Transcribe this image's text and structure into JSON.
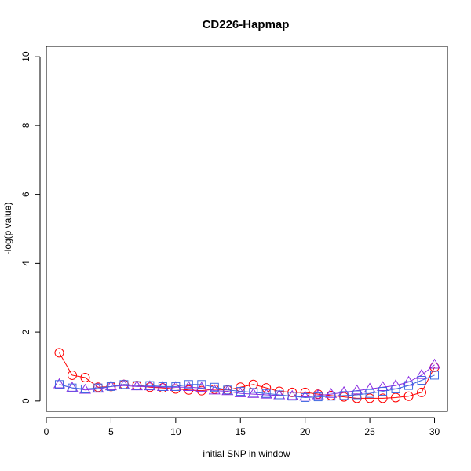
{
  "chart_data": {
    "type": "line",
    "title": "CD226-Hapmap",
    "xlabel": "initial SNP in window",
    "ylabel": "-log(p value)",
    "xlim": [
      0,
      31
    ],
    "ylim": [
      -0.3,
      10.3
    ],
    "xticks": [
      0,
      5,
      10,
      15,
      20,
      25,
      30
    ],
    "yticks": [
      0,
      2,
      4,
      6,
      8,
      10
    ],
    "grid": false,
    "x": [
      1,
      2,
      3,
      4,
      5,
      6,
      7,
      8,
      9,
      10,
      11,
      12,
      13,
      14,
      15,
      16,
      17,
      18,
      19,
      20,
      21,
      22,
      23,
      24,
      25,
      26,
      27,
      28,
      29,
      30
    ],
    "series": [
      {
        "marker": "circle",
        "color": "#ff0000",
        "values": [
          1.4,
          0.75,
          0.68,
          0.4,
          0.42,
          0.48,
          0.45,
          0.4,
          0.38,
          0.35,
          0.32,
          0.3,
          0.34,
          0.32,
          0.4,
          0.48,
          0.38,
          0.28,
          0.25,
          0.25,
          0.2,
          0.16,
          0.12,
          0.08,
          0.08,
          0.08,
          0.1,
          0.14,
          0.25,
          0.98
        ]
      },
      {
        "marker": "triangle",
        "color": "#8a2be2",
        "values": [
          0.48,
          0.38,
          0.32,
          0.35,
          0.42,
          0.45,
          0.42,
          0.42,
          0.4,
          0.4,
          0.4,
          0.38,
          0.3,
          0.28,
          0.22,
          0.2,
          0.18,
          0.16,
          0.14,
          0.12,
          0.16,
          0.2,
          0.25,
          0.3,
          0.35,
          0.4,
          0.45,
          0.55,
          0.75,
          1.05
        ]
      },
      {
        "marker": "square",
        "color": "#4169e1",
        "values": [
          0.48,
          0.38,
          0.35,
          0.38,
          0.42,
          0.48,
          0.45,
          0.45,
          0.42,
          0.42,
          0.48,
          0.48,
          0.4,
          0.32,
          0.28,
          0.25,
          0.22,
          0.18,
          0.14,
          0.1,
          0.12,
          0.14,
          0.16,
          0.18,
          0.22,
          0.28,
          0.35,
          0.45,
          0.6,
          0.75
        ]
      }
    ]
  }
}
